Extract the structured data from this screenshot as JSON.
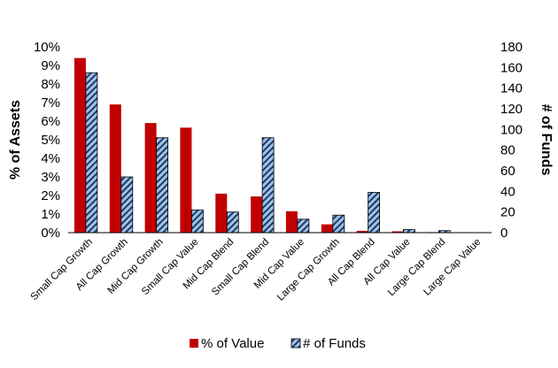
{
  "chart_data": {
    "type": "bar",
    "categories": [
      "Small Cap Growth",
      "All Cap Growth",
      "Mid Cap Growth",
      "Small Cap Value",
      "Mid Cap Blend",
      "Small Cap Blend",
      "Mid Cap Value",
      "Large Cap Growth",
      "All Cap Blend",
      "All Cap Value",
      "Large Cap Blend",
      "Large Cap Value"
    ],
    "series": [
      {
        "name": "% of Value",
        "axis": "left",
        "color": "#c00000",
        "values": [
          9.4,
          6.9,
          5.9,
          5.65,
          2.1,
          1.95,
          1.15,
          0.45,
          0.1,
          0.07,
          0.03,
          0.0
        ]
      },
      {
        "name": "# of Funds",
        "axis": "right",
        "color": "#9dc3e6",
        "pattern": "diagonal-hatch",
        "values": [
          155,
          54,
          92,
          22,
          20,
          92,
          13,
          17,
          39,
          3,
          2,
          0
        ]
      }
    ],
    "ylabel": "% of Assets",
    "y2label": "# of Funds",
    "ylim": [
      0,
      10
    ],
    "y2lim": [
      0,
      180
    ],
    "yticks": [
      "0%",
      "1%",
      "2%",
      "3%",
      "4%",
      "5%",
      "6%",
      "7%",
      "8%",
      "9%",
      "10%"
    ],
    "y2ticks": [
      "0",
      "20",
      "40",
      "60",
      "80",
      "100",
      "120",
      "140",
      "160",
      "180"
    ],
    "legend_position": "bottom",
    "grid": false
  }
}
